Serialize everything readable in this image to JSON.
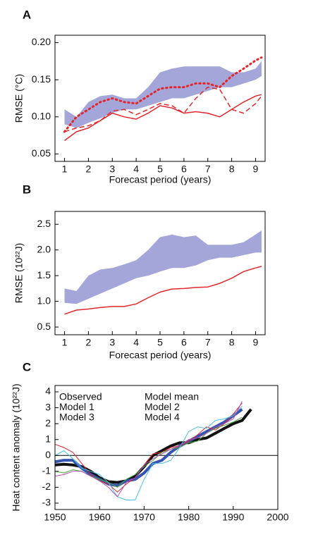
{
  "chart_data": [
    {
      "type": "line",
      "panel": "A",
      "x_label": "Forecast period (years)",
      "y_label": "RMSE (°C)",
      "x": [
        1,
        1.5,
        2,
        2.5,
        3,
        3.5,
        4,
        4.5,
        5,
        5.5,
        6,
        6.5,
        7,
        7.5,
        8,
        8.5,
        9,
        9.25
      ],
      "xlim": [
        0.6,
        9.4
      ],
      "xticks": [
        1,
        2,
        3,
        4,
        5,
        6,
        7,
        8,
        9
      ],
      "ylim": [
        0.04,
        0.21
      ],
      "yticks": [
        {
          "value": 0.05,
          "label": "0.05"
        },
        {
          "value": 0.1,
          "label": "0.10"
        },
        {
          "value": 0.15,
          "label": "0.15"
        },
        {
          "value": 0.2,
          "label": "0.20"
        }
      ],
      "band": {
        "color": "#a4a5d8",
        "lower": [
          0.09,
          0.085,
          0.092,
          0.098,
          0.105,
          0.11,
          0.11,
          0.115,
          0.12,
          0.125,
          0.125,
          0.13,
          0.135,
          0.14,
          0.14,
          0.145,
          0.15,
          0.155
        ],
        "upper": [
          0.11,
          0.1,
          0.12,
          0.128,
          0.13,
          0.125,
          0.125,
          0.14,
          0.16,
          0.165,
          0.168,
          0.168,
          0.168,
          0.168,
          0.16,
          0.16,
          0.165,
          0.175
        ]
      },
      "series": [
        {
          "color": "#e3262b",
          "style": "solid",
          "values": [
            0.068,
            0.08,
            0.085,
            0.095,
            0.105,
            0.1,
            0.097,
            0.105,
            0.115,
            0.112,
            0.105,
            0.107,
            0.105,
            0.1,
            0.11,
            0.12,
            0.128,
            0.13
          ]
        },
        {
          "color": "#e3262b",
          "style": "dashed",
          "values": [
            0.08,
            0.085,
            0.088,
            0.095,
            0.108,
            0.11,
            0.103,
            0.11,
            0.118,
            0.115,
            0.105,
            0.125,
            0.14,
            0.137,
            0.11,
            0.105,
            0.118,
            0.128
          ]
        },
        {
          "color": "#e3262b",
          "style": "dotted",
          "values": [
            0.08,
            0.1,
            0.11,
            0.12,
            0.125,
            0.12,
            0.118,
            0.128,
            0.138,
            0.14,
            0.14,
            0.145,
            0.145,
            0.14,
            0.155,
            0.165,
            0.176,
            0.18
          ]
        }
      ]
    },
    {
      "type": "line",
      "panel": "B",
      "x_label": "Forecast period (years)",
      "y_label": "RMSE (10²²J)",
      "x": [
        1,
        1.5,
        2,
        2.5,
        3,
        3.5,
        4,
        4.5,
        5,
        5.5,
        6,
        6.5,
        7,
        7.5,
        8,
        8.5,
        9,
        9.25
      ],
      "xlim": [
        0.6,
        9.4
      ],
      "xticks": [
        1,
        2,
        3,
        4,
        5,
        6,
        7,
        8,
        9
      ],
      "ylim": [
        0.35,
        2.75
      ],
      "yticks": [
        0.5,
        {
          "value": 1,
          "label": "1.0"
        },
        1.5,
        {
          "value": 2,
          "label": "2.0"
        },
        2.5
      ],
      "band": {
        "color": "#a4a5d8",
        "lower": [
          0.97,
          0.95,
          1.05,
          1.15,
          1.25,
          1.35,
          1.45,
          1.5,
          1.58,
          1.65,
          1.65,
          1.7,
          1.8,
          1.85,
          1.85,
          1.9,
          1.95,
          1.95
        ],
        "upper": [
          1.25,
          1.2,
          1.5,
          1.62,
          1.65,
          1.72,
          1.8,
          2.0,
          2.25,
          2.3,
          2.25,
          2.28,
          2.1,
          2.1,
          2.1,
          2.15,
          2.3,
          2.38
        ]
      },
      "series": [
        {
          "color": "#e3262b",
          "style": "solid",
          "values": [
            0.75,
            0.83,
            0.85,
            0.88,
            0.9,
            0.9,
            0.95,
            1.07,
            1.18,
            1.24,
            1.25,
            1.27,
            1.28,
            1.35,
            1.45,
            1.58,
            1.65,
            1.68
          ]
        }
      ]
    },
    {
      "type": "line",
      "panel": "C",
      "y_label": "Heat content anomaly (10²²J)",
      "zero_line": true,
      "legend": "upper left",
      "x": [
        1950,
        1952,
        1954,
        1956,
        1958,
        1960,
        1962,
        1964,
        1966,
        1968,
        1970,
        1972,
        1974,
        1976,
        1978,
        1980,
        1982,
        1984,
        1986,
        1988,
        1990,
        1992,
        1994
      ],
      "xlim": [
        1950,
        2000
      ],
      "xticks": [
        1950,
        1960,
        1970,
        1980,
        1990,
        2000
      ],
      "ylim": [
        -3.4,
        4.4
      ],
      "yticks": [
        -3,
        -2,
        -1,
        0,
        1,
        2,
        3,
        4
      ],
      "series": [
        {
          "name": "Observed",
          "color": "#111111",
          "style": "solid",
          "width": 4,
          "values": [
            -0.6,
            -0.55,
            -0.6,
            -0.7,
            -1.0,
            -1.4,
            -1.65,
            -1.7,
            -1.6,
            -1.3,
            -0.7,
            0,
            0.3,
            0.6,
            0.8,
            0.8,
            1.0,
            1.1,
            1.4,
            1.7,
            2.0,
            2.2,
            2.9
          ]
        },
        {
          "name": "Model mean",
          "color": "#3553b0",
          "style": "solid",
          "width": 4,
          "values": [
            -0.4,
            -0.3,
            -0.3,
            -0.8,
            -1.2,
            -1.5,
            -1.8,
            -1.9,
            -1.6,
            -1.5,
            -1.1,
            -0.5,
            -0.3,
            0.2,
            0.6,
            0.9,
            1.2,
            1.5,
            1.8,
            2.1,
            2.5,
            2.9,
            null
          ]
        },
        {
          "name": "Model 1",
          "color": "#e3262b",
          "style": "solid",
          "width": 1,
          "values": [
            0.7,
            0.5,
            0.2,
            -0.5,
            -1.2,
            -1.6,
            -1.8,
            -2.3,
            -1.8,
            -1.4,
            -0.6,
            0.1,
            0.2,
            0.5,
            0.6,
            0.9,
            1.3,
            1.8,
            1.6,
            2.0,
            2.6,
            3.3,
            null
          ]
        },
        {
          "name": "Model 2",
          "color": "#4aa83a",
          "style": "solid",
          "width": 1,
          "values": [
            -1.0,
            -1.1,
            -0.9,
            -1.0,
            -1.3,
            -1.5,
            -1.7,
            -2.0,
            -1.5,
            -1.2,
            -0.7,
            -0.3,
            0.2,
            0.4,
            0.5,
            0.8,
            0.9,
            1.4,
            1.7,
            1.9,
            2.1,
            2.4,
            null
          ]
        },
        {
          "name": "Model 3",
          "color": "#4cc0e8",
          "style": "solid",
          "width": 1,
          "values": [
            0.0,
            0.3,
            -0.2,
            -0.8,
            -1.0,
            -1.2,
            -1.7,
            -2.6,
            -2.8,
            -2.8,
            -1.5,
            -0.5,
            -0.5,
            -0.3,
            0.5,
            1.5,
            1.8,
            1.7,
            2.2,
            2.3,
            2.5,
            3.1,
            null
          ]
        },
        {
          "name": "Model 4",
          "color": "#b04db4",
          "style": "solid",
          "width": 1,
          "values": [
            -1.3,
            -1.2,
            -1.0,
            -1.0,
            -1.3,
            -1.6,
            -2.0,
            -2.6,
            -1.7,
            -1.4,
            -0.6,
            -0.2,
            0.1,
            0.4,
            0.6,
            1.0,
            1.1,
            1.4,
            1.8,
            2.0,
            2.3,
            3.4,
            null
          ]
        }
      ]
    }
  ]
}
